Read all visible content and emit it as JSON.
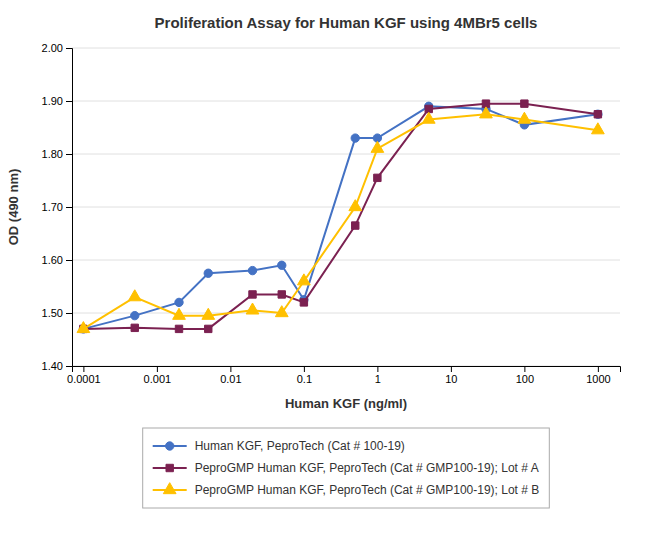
{
  "chart_data": {
    "type": "line",
    "title": "Proliferation Assay for Human KGF using 4MBr5 cells",
    "xlabel": "Human KGF (ng/ml)",
    "ylabel": "OD (490 nm)",
    "log": "x",
    "grid": "y",
    "legend": "bottom",
    "xlim": [
      7e-05,
      2000
    ],
    "xticks": [
      0.0001,
      0.001,
      0.01,
      0.1,
      1,
      10,
      100,
      1000
    ],
    "ylim": [
      1.4,
      2.0
    ],
    "yticks": [
      {
        "value": 1.4,
        "label": "1.40"
      },
      {
        "value": 1.5,
        "label": "1.50"
      },
      {
        "value": 1.6,
        "label": "1.60"
      },
      {
        "value": 1.7,
        "label": "1.70"
      },
      {
        "value": 1.8,
        "label": "1.80"
      },
      {
        "value": 1.9,
        "label": "1.90"
      },
      {
        "value": 2.0,
        "label": "2.00"
      }
    ],
    "x": [
      0.0001,
      0.0005,
      0.002,
      0.005,
      0.02,
      0.05,
      0.1,
      0.5,
      1,
      5,
      30,
      100,
      1000
    ],
    "series": [
      {
        "name": "Human KGF, PeproTech (Cat # 100-19)",
        "color": "#4472C4",
        "marker": "circle",
        "values": [
          1.47,
          1.495,
          1.52,
          1.575,
          1.58,
          1.59,
          1.525,
          1.83,
          1.83,
          1.89,
          1.885,
          1.855,
          1.875
        ]
      },
      {
        "name": "PeproGMP Human KGF, PeproTech (Cat # GMP100-19); Lot # A",
        "color": "#7B2151",
        "marker": "square",
        "values": [
          1.47,
          1.472,
          1.47,
          1.47,
          1.535,
          1.535,
          1.52,
          1.665,
          1.755,
          1.885,
          1.895,
          1.895,
          1.875
        ]
      },
      {
        "name": "PeproGMP Human KGF, PeproTech (Cat # GMP100-19); Lot # B",
        "color": "#FFC000",
        "marker": "triangle",
        "values": [
          1.47,
          1.53,
          1.495,
          1.495,
          1.505,
          1.5,
          1.56,
          1.7,
          1.81,
          1.865,
          1.875,
          1.865,
          1.845
        ]
      }
    ]
  }
}
